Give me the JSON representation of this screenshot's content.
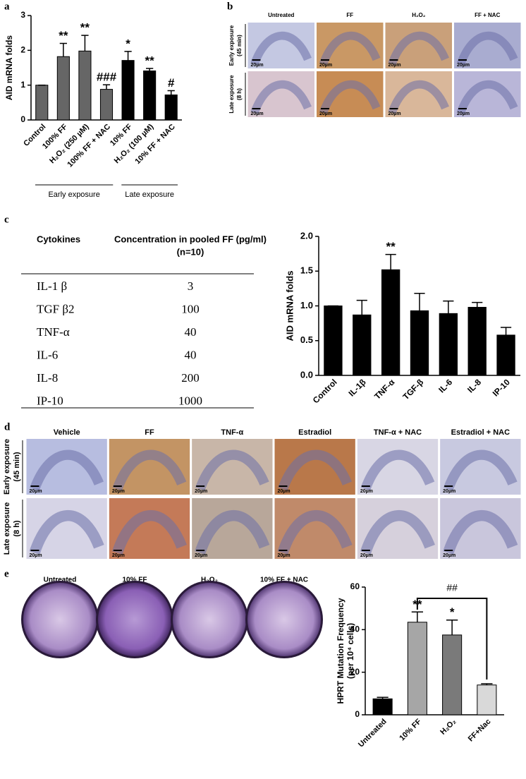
{
  "panel_labels": [
    "a",
    "b",
    "c",
    "d",
    "e"
  ],
  "chart_data": [
    {
      "type": "bar",
      "ylabel": [
        "AID mRNA folds"
      ],
      "groups": [
        {
          "label": "Early exposure",
          "categories": [
            "Control",
            "100% FF",
            "H₂O₂ (250 µM)",
            "100% FF + NAC"
          ]
        },
        {
          "label": "Late exposure",
          "categories": [
            "10% FF",
            "H₂O₂ (100 µM)",
            "10% FF + NAC"
          ]
        }
      ],
      "values": [
        1.0,
        1.82,
        1.98,
        0.88,
        1.71,
        1.41,
        0.72
      ],
      "errors": [
        0,
        0.38,
        0.45,
        0.13,
        0.26,
        0.07,
        0.12
      ],
      "annotations": [
        null,
        "**",
        "**",
        "###",
        "*",
        "**",
        "#"
      ],
      "colors": [
        "#666666",
        "#666666",
        "#666666",
        "#666666",
        "#000000",
        "#000000",
        "#000000"
      ],
      "ylim": [
        0,
        3
      ],
      "yticks": [
        0,
        1,
        2,
        3
      ]
    },
    {
      "type": "bar",
      "ylabel": [
        "AID mRNA folds"
      ],
      "categories": [
        "Control",
        "IL-1β",
        "TNF-α",
        "TGF-β",
        "IL-6",
        "IL-8",
        "IP-10"
      ],
      "values": [
        1.0,
        0.87,
        1.52,
        0.93,
        0.89,
        0.98,
        0.58
      ],
      "errors": [
        0,
        0.21,
        0.22,
        0.25,
        0.18,
        0.07,
        0.11
      ],
      "annotations": [
        null,
        null,
        "**",
        null,
        null,
        null,
        null
      ],
      "colors": [
        "#000000",
        "#000000",
        "#000000",
        "#000000",
        "#000000",
        "#000000",
        "#000000"
      ],
      "ylim": [
        0,
        2.0
      ],
      "yticks": [
        {
          "value": 0,
          "label": "0.0"
        },
        {
          "value": 0.5,
          "label": "0.5"
        },
        {
          "value": 1.0,
          "label": "1.0"
        },
        {
          "value": 1.5,
          "label": "1.5"
        },
        {
          "value": 2.0,
          "label": "2.0"
        }
      ]
    },
    {
      "type": "bar",
      "ylabel": [
        "HPRT Mutation Frequency",
        "(per 10⁴ cells)"
      ],
      "categories": [
        "Untreated",
        "10% FF",
        "H₂O₂",
        "FF+Nac"
      ],
      "values": [
        7.5,
        43.5,
        37.5,
        14
      ],
      "errors": [
        0.7,
        4.8,
        7,
        0.6
      ],
      "annotations": [
        null,
        "**",
        "*",
        null
      ],
      "colors": [
        "#000000",
        "#a6a6a6",
        "#7a7a7a",
        "#d9d9d9"
      ],
      "bracket": {
        "label": "##",
        "from": 1,
        "to": 3
      },
      "ylim": [
        0,
        60
      ],
      "yticks": [
        0,
        20,
        40,
        60
      ]
    }
  ],
  "panel_b": {
    "columns": [
      "Untreated",
      "FF",
      "H₂O₂",
      "FF + NAC"
    ],
    "rows": [
      {
        "label": "Early exposure",
        "sub": "(45 min)"
      },
      {
        "label": "Late exposure",
        "sub": "(8 h)"
      }
    ],
    "scale_bar": "20µm"
  },
  "panel_c_table": {
    "headers": [
      "Cytokines",
      "Concentration in pooled FF (pg/ml)"
    ],
    "header_note": "(n=10)",
    "rows": [
      [
        "IL-1 β",
        3
      ],
      [
        "TGF β2",
        100
      ],
      [
        "TNF-α",
        40
      ],
      [
        "IL-6",
        40
      ],
      [
        "IL-8",
        200
      ],
      [
        "IP-10",
        1000
      ]
    ]
  },
  "panel_d": {
    "columns": [
      "Vehicle",
      "FF",
      "TNF-α",
      "Estradiol",
      "TNF-α + NAC",
      "Estradiol + NAC"
    ],
    "rows": [
      {
        "label": "Early exposure",
        "sub": "(45 min)"
      },
      {
        "label": "Late exposure",
        "sub": "(8 h)"
      }
    ],
    "scale_bar": "20µm"
  },
  "panel_e_plates": {
    "labels": [
      "Untreated",
      "10% FF",
      "H₂O₂",
      "10% FF + NAC"
    ]
  }
}
